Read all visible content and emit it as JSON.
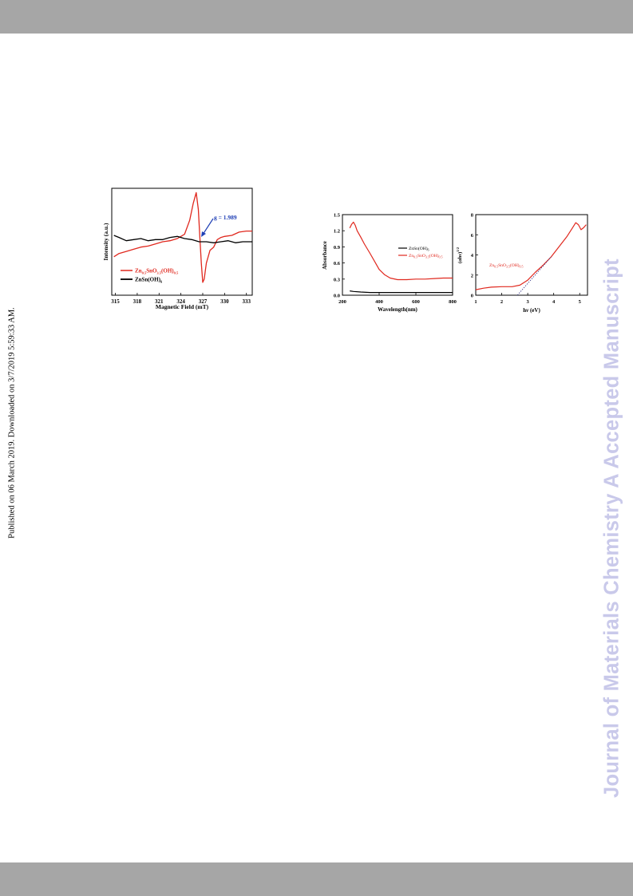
{
  "page": {
    "published_note": "Published on 06 March 2019. Downloaded on 3/7/2019 5:59:33 AM.",
    "watermark": "Journal of Materials Chemistry A Accepted Manuscript",
    "band_color": "#a6a6a6",
    "watermark_color": "#c9c9ea"
  },
  "chart_data": [
    {
      "type": "line",
      "xlabel": "Magnetic Field (mT)",
      "ylabel": "Intensity (a.u.)",
      "xlim": [
        314.5,
        333.8
      ],
      "ylim": [
        0,
        1
      ],
      "x_ticks": [
        315,
        318,
        321,
        324,
        327,
        330,
        333
      ],
      "legend": [
        "Zn0.5SnO3.5(OH)0.5",
        "ZnSn(OH)6"
      ],
      "annotation": "g = 1.989",
      "series": [
        {
          "name": "Zn0.5SnO3.5(OH)0.5",
          "color": "#e0281e",
          "x": [
            314.8,
            315.5,
            316.5,
            317.5,
            318.5,
            319.5,
            320.5,
            321.5,
            322.5,
            323.5,
            324.5,
            325.2,
            325.7,
            326.1,
            326.4,
            326.6,
            326.8,
            327.0,
            327.2,
            327.5,
            328.0,
            328.5,
            329.0,
            329.5,
            330.0,
            331.0,
            332.0,
            333.0,
            333.8
          ],
          "y": [
            0.36,
            0.39,
            0.41,
            0.43,
            0.45,
            0.46,
            0.48,
            0.5,
            0.51,
            0.53,
            0.57,
            0.7,
            0.86,
            0.96,
            0.8,
            0.55,
            0.3,
            0.12,
            0.15,
            0.3,
            0.42,
            0.45,
            0.52,
            0.54,
            0.55,
            0.56,
            0.59,
            0.6,
            0.6
          ]
        },
        {
          "name": "ZnSn(OH)6",
          "color": "#000000",
          "x": [
            314.8,
            315.5,
            316.5,
            317.5,
            318.5,
            319.5,
            320.5,
            321.5,
            322.5,
            323.5,
            324.5,
            325.5,
            326.5,
            327.5,
            328.5,
            329.5,
            330.5,
            331.5,
            332.5,
            333.5,
            333.8
          ],
          "y": [
            0.56,
            0.54,
            0.51,
            0.52,
            0.53,
            0.51,
            0.52,
            0.52,
            0.54,
            0.55,
            0.53,
            0.52,
            0.5,
            0.5,
            0.49,
            0.5,
            0.51,
            0.49,
            0.5,
            0.5,
            0.5
          ]
        }
      ]
    },
    {
      "type": "line",
      "xlabel": "Wavelength(nm)",
      "ylabel": "Absorbance",
      "xlim": [
        200,
        800
      ],
      "ylim": [
        0,
        1.5
      ],
      "x_ticks": [
        200,
        400,
        600,
        800
      ],
      "y_ticks": [
        0.0,
        0.3,
        0.6,
        0.9,
        1.2,
        1.5
      ],
      "legend": [
        "ZnSn(OH)6",
        "Zn0.5SnO3.5(OH)0.5"
      ],
      "series": [
        {
          "name": "ZnSn(OH)6",
          "color": "#000000",
          "x": [
            240,
            260,
            300,
            350,
            400,
            500,
            600,
            700,
            800
          ],
          "y": [
            0.08,
            0.07,
            0.06,
            0.05,
            0.05,
            0.05,
            0.05,
            0.05,
            0.05
          ]
        },
        {
          "name": "Zn0.5SnO3.5(OH)0.5",
          "color": "#e0281e",
          "x": [
            240,
            250,
            260,
            270,
            280,
            300,
            320,
            350,
            380,
            400,
            430,
            460,
            500,
            550,
            600,
            650,
            700,
            750,
            800
          ],
          "y": [
            1.25,
            1.32,
            1.36,
            1.3,
            1.2,
            1.08,
            0.95,
            0.78,
            0.6,
            0.48,
            0.38,
            0.32,
            0.29,
            0.29,
            0.3,
            0.3,
            0.31,
            0.32,
            0.32
          ]
        }
      ]
    },
    {
      "type": "line",
      "xlabel": "hv (eV)",
      "ylabel": "(αhv)^1/2",
      "xlim": [
        1,
        5.3
      ],
      "ylim": [
        0,
        8
      ],
      "x_ticks": [
        1,
        2,
        3,
        4,
        5
      ],
      "y_ticks": [
        0,
        2,
        4,
        6,
        8
      ],
      "legend": [
        "Zn0.5SnO3.5(OH)0.5"
      ],
      "series": [
        {
          "name": "Zn0.5SnO3.5(OH)0.5",
          "color": "#e0281e",
          "x": [
            1.0,
            1.3,
            1.6,
            2.0,
            2.4,
            2.7,
            3.0,
            3.3,
            3.6,
            3.9,
            4.2,
            4.5,
            4.7,
            4.85,
            4.95,
            5.05,
            5.15,
            5.25
          ],
          "y": [
            0.55,
            0.7,
            0.8,
            0.85,
            0.85,
            1.0,
            1.5,
            2.3,
            3.0,
            3.8,
            4.8,
            5.8,
            6.6,
            7.2,
            7.0,
            6.5,
            6.7,
            7.0
          ]
        },
        {
          "name": "tangent",
          "color": "#3a3a8a",
          "dashed": true,
          "x": [
            2.6,
            3.9
          ],
          "y": [
            0.0,
            3.8
          ]
        }
      ]
    }
  ]
}
